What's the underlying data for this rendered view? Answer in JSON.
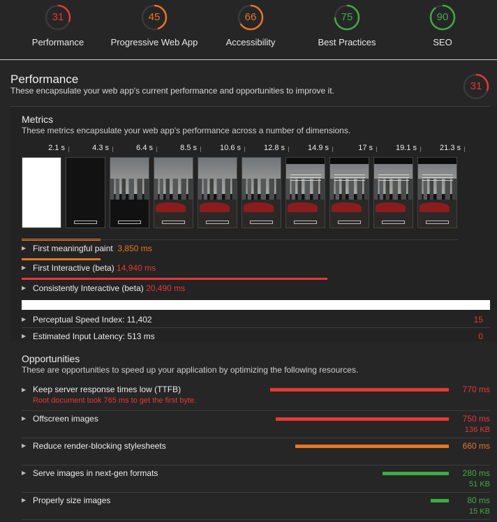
{
  "scores": [
    {
      "label": "Performance",
      "value": "31",
      "color": "#e53935",
      "fraction": 0.31
    },
    {
      "label": "Progressive Web App",
      "value": "45",
      "color": "#e67624",
      "fraction": 0.45
    },
    {
      "label": "Accessibility",
      "value": "66",
      "color": "#e67624",
      "fraction": 0.66
    },
    {
      "label": "Best Practices",
      "value": "75",
      "color": "#3fab45",
      "fraction": 0.75
    },
    {
      "label": "SEO",
      "value": "90",
      "color": "#3fab45",
      "fraction": 0.9
    }
  ],
  "performance": {
    "title": "Performance",
    "description": "These encapsulate your web app's current performance and opportunities to improve it.",
    "score": "31",
    "score_color": "#e53935",
    "score_fraction": 0.31
  },
  "metrics": {
    "title": "Metrics",
    "description": "These metrics encapsulate your web app's performance across a number of dimensions.",
    "filmstrip_times": [
      "2.1 s",
      "4.3 s",
      "6.4 s",
      "8.5 s",
      "10.6 s",
      "12.8 s",
      "14.9 s",
      "17 s",
      "19.1 s",
      "21.3 s"
    ],
    "rows": [
      {
        "label": "First meaningful paint",
        "value": "3,850 ms",
        "color": "orange",
        "bar_fraction": 0.18
      },
      {
        "label": "First Interactive (beta)",
        "value": "14,940 ms",
        "color": "red",
        "bar_fraction": 0.7
      },
      {
        "label": "Consistently Interactive (beta)",
        "value": "20,490 ms",
        "color": "red",
        "bar_fraction": 0.96
      }
    ],
    "stats": [
      {
        "label": "Perceptual Speed Index: 11,402",
        "score": "15"
      },
      {
        "label": "Estimated Input Latency: 513 ms",
        "score": "0"
      }
    ]
  },
  "opportunities": {
    "title": "Opportunities",
    "description": "These are opportunities to speed up your application by optimizing the following resources.",
    "items": [
      {
        "label": "Keep server response times low (TTFB)",
        "note": "Root document took 765 ms to get the first byte.",
        "value": "770 ms",
        "size": "",
        "color": "#e53935",
        "bar_fraction": 1.0
      },
      {
        "label": "Offscreen images",
        "note": "",
        "value": "750 ms",
        "size": "136 KB",
        "color": "#e53935",
        "bar_fraction": 0.97
      },
      {
        "label": "Reduce render-blocking stylesheets",
        "note": "",
        "value": "660 ms",
        "size": "",
        "color": "#e67624",
        "bar_fraction": 0.86
      },
      {
        "label": "Serve images in next-gen formats",
        "note": "",
        "value": "280 ms",
        "size": "51 KB",
        "color": "#3fab45",
        "bar_fraction": 0.37
      },
      {
        "label": "Properly size images",
        "note": "",
        "value": "80 ms",
        "size": "15 KB",
        "color": "#3fab45",
        "bar_fraction": 0.1
      }
    ]
  }
}
